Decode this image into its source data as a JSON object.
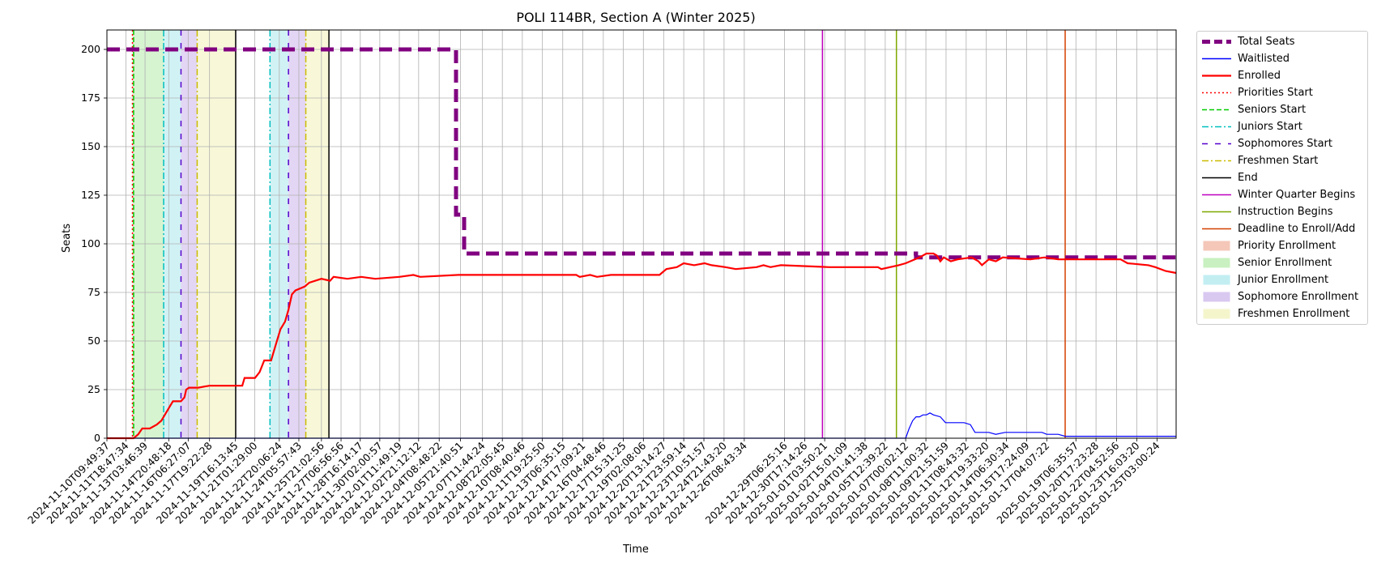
{
  "chart_data": {
    "type": "line",
    "title": "POLI 114BR, Section A (Winter 2025)",
    "xlabel": "Time",
    "ylabel": "Seats",
    "ylim": [
      0,
      210
    ],
    "yticks": [
      0,
      25,
      50,
      75,
      100,
      125,
      150,
      175,
      200
    ],
    "x_range": [
      "2024-11-10T09:49:37",
      "2025-01-26T12:00:00"
    ],
    "xticks": [
      "2024-11-10T09:49:37",
      "2024-11-11T18:47:34",
      "2024-11-13T03:46:39",
      "2024-11-14T20:48:18",
      "2024-11-16T06:27:07",
      "2024-11-17T19:22:28",
      "2024-11-19T16:13:45",
      "2024-11-21T01:29:00",
      "2024-11-22T20:06:24",
      "2024-11-24T05:57:43",
      "2024-11-25T21:02:56",
      "2024-11-27T06:56:56",
      "2024-11-28T16:14:17",
      "2024-11-30T02:00:57",
      "2024-12-01T11:49:19",
      "2024-12-02T21:12:12",
      "2024-12-04T08:48:22",
      "2024-12-05T21:40:51",
      "2024-12-07T11:44:24",
      "2024-12-08T22:05:45",
      "2024-12-10T08:40:46",
      "2024-12-11T19:25:50",
      "2024-12-13T06:35:15",
      "2024-12-14T17:09:21",
      "2024-12-16T04:48:46",
      "2024-12-17T15:31:25",
      "2024-12-19T02:08:06",
      "2024-12-20T13:14:27",
      "2024-12-21T23:59:14",
      "2024-12-23T10:51:57",
      "2024-12-24T21:43:20",
      "2024-12-26T08:43:34",
      "2024-12-29T06:25:16",
      "2024-12-30T17:14:26",
      "2025-01-01T03:50:21",
      "2025-01-02T15:01:09",
      "2025-01-04T01:41:38",
      "2025-01-05T12:39:22",
      "2025-01-07T00:02:12",
      "2025-01-08T11:00:32",
      "2025-01-09T21:51:59",
      "2025-01-11T08:43:32",
      "2025-01-12T19:33:20",
      "2025-01-14T06:30:34",
      "2025-01-15T17:24:09",
      "2025-01-17T04:07:22",
      "2025-01-19T06:35:57",
      "2025-01-20T17:23:28",
      "2025-01-22T04:52:56",
      "2025-01-23T16:03:20",
      "2025-01-25T03:00:24"
    ],
    "grid": true,
    "legend_position": "outside-right",
    "series": [
      {
        "name": "Total Seats",
        "color": "#800080",
        "style": "dashed-thick",
        "points": [
          [
            "2024-11-10T09:49:37",
            200
          ],
          [
            "2024-12-05T14:00:00",
            200
          ],
          [
            "2024-12-05T14:00:00",
            115
          ],
          [
            "2024-12-06T04:00:00",
            115
          ],
          [
            "2024-12-06T04:00:00",
            95
          ],
          [
            "2025-01-07T18:00:00",
            95
          ],
          [
            "2025-01-07T18:00:00",
            93
          ],
          [
            "2025-01-26T12:00:00",
            93
          ]
        ]
      },
      {
        "name": "Waitlisted",
        "color": "#0000ff",
        "style": "solid",
        "points": [
          [
            "2024-11-10T09:49:37",
            0
          ],
          [
            "2025-01-07T00:02:12",
            0
          ],
          [
            "2025-01-07T06:00:00",
            5
          ],
          [
            "2025-01-07T12:00:00",
            9
          ],
          [
            "2025-01-07T18:00:00",
            11
          ],
          [
            "2025-01-08T00:00:00",
            11
          ],
          [
            "2025-01-08T06:00:00",
            12
          ],
          [
            "2025-01-08T12:00:00",
            12
          ],
          [
            "2025-01-08T18:00:00",
            13
          ],
          [
            "2025-01-09T00:00:00",
            12
          ],
          [
            "2025-01-09T12:00:00",
            11
          ],
          [
            "2025-01-09T21:00:00",
            8
          ],
          [
            "2025-01-11T05:00:00",
            8
          ],
          [
            "2025-01-11T16:00:00",
            7
          ],
          [
            "2025-01-12T00:00:00",
            3
          ],
          [
            "2025-01-13T00:00:00",
            3
          ],
          [
            "2025-01-13T12:00:00",
            2
          ],
          [
            "2025-01-14T04:00:00",
            3
          ],
          [
            "2025-01-16T20:00:00",
            3
          ],
          [
            "2025-01-17T04:00:00",
            2
          ],
          [
            "2025-01-18T00:00:00",
            2
          ],
          [
            "2025-01-18T12:00:00",
            1
          ],
          [
            "2025-01-26T12:00:00",
            1
          ]
        ]
      },
      {
        "name": "Enrolled",
        "color": "#ff0000",
        "style": "solid-thick",
        "points": [
          [
            "2024-11-10T09:49:37",
            0
          ],
          [
            "2024-11-12T08:00:00",
            0
          ],
          [
            "2024-11-12T16:00:00",
            2
          ],
          [
            "2024-11-12T23:00:00",
            5
          ],
          [
            "2024-11-13T12:00:00",
            5
          ],
          [
            "2024-11-14T00:00:00",
            7
          ],
          [
            "2024-11-14T08:00:00",
            9
          ],
          [
            "2024-11-14T18:00:00",
            14
          ],
          [
            "2024-11-15T00:00:00",
            17
          ],
          [
            "2024-11-15T04:00:00",
            19
          ],
          [
            "2024-11-15T18:00:00",
            19
          ],
          [
            "2024-11-16T00:00:00",
            21
          ],
          [
            "2024-11-16T03:00:00",
            25
          ],
          [
            "2024-11-16T08:00:00",
            26
          ],
          [
            "2024-11-17T00:00:00",
            26
          ],
          [
            "2024-11-17T19:00:00",
            27
          ],
          [
            "2024-11-20T04:00:00",
            27
          ],
          [
            "2024-11-20T08:00:00",
            31
          ],
          [
            "2024-11-21T02:00:00",
            31
          ],
          [
            "2024-11-21T10:00:00",
            34
          ],
          [
            "2024-11-21T18:00:00",
            40
          ],
          [
            "2024-11-22T06:00:00",
            40
          ],
          [
            "2024-11-22T14:00:00",
            48
          ],
          [
            "2024-11-22T22:00:00",
            56
          ],
          [
            "2024-11-23T06:00:00",
            60
          ],
          [
            "2024-11-23T12:00:00",
            66
          ],
          [
            "2024-11-23T18:00:00",
            74
          ],
          [
            "2024-11-24T00:00:00",
            76
          ],
          [
            "2024-11-24T16:00:00",
            78
          ],
          [
            "2024-11-25T00:00:00",
            80
          ],
          [
            "2024-11-25T21:00:00",
            82
          ],
          [
            "2024-11-26T12:00:00",
            81
          ],
          [
            "2024-11-26T18:00:00",
            83
          ],
          [
            "2024-11-27T18:00:00",
            82
          ],
          [
            "2024-11-28T18:00:00",
            83
          ],
          [
            "2024-11-29T18:00:00",
            82
          ],
          [
            "2024-12-01T12:00:00",
            83
          ],
          [
            "2024-12-02T12:00:00",
            84
          ],
          [
            "2024-12-03T00:00:00",
            83
          ],
          [
            "2024-12-05T18:00:00",
            84
          ],
          [
            "2024-12-14T06:00:00",
            84
          ],
          [
            "2024-12-14T12:00:00",
            83
          ],
          [
            "2024-12-15T06:00:00",
            84
          ],
          [
            "2024-12-15T18:00:00",
            83
          ],
          [
            "2024-12-16T18:00:00",
            84
          ],
          [
            "2024-12-20T06:00:00",
            84
          ],
          [
            "2024-12-20T18:00:00",
            87
          ],
          [
            "2024-12-21T12:00:00",
            88
          ],
          [
            "2024-12-22T00:00:00",
            90
          ],
          [
            "2024-12-22T18:00:00",
            89
          ],
          [
            "2024-12-23T12:00:00",
            90
          ],
          [
            "2024-12-24T00:00:00",
            89
          ],
          [
            "2024-12-25T00:00:00",
            88
          ],
          [
            "2024-12-25T18:00:00",
            87
          ],
          [
            "2024-12-27T06:00:00",
            88
          ],
          [
            "2024-12-27T18:00:00",
            89
          ],
          [
            "2024-12-28T06:00:00",
            88
          ],
          [
            "2024-12-29T00:00:00",
            89
          ],
          [
            "2025-01-01T12:00:00",
            88
          ],
          [
            "2025-01-05T00:00:00",
            88
          ],
          [
            "2025-01-05T06:00:00",
            87
          ],
          [
            "2025-01-06T12:00:00",
            89
          ],
          [
            "2025-01-07T00:00:00",
            90
          ],
          [
            "2025-01-08T00:00:00",
            93
          ],
          [
            "2025-01-08T12:00:00",
            95
          ],
          [
            "2025-01-09T00:00:00",
            95
          ],
          [
            "2025-01-09T06:00:00",
            94
          ],
          [
            "2025-01-09T12:00:00",
            91
          ],
          [
            "2025-01-09T18:00:00",
            93
          ],
          [
            "2025-01-10T06:00:00",
            91
          ],
          [
            "2025-01-10T18:00:00",
            92
          ],
          [
            "2025-01-11T18:00:00",
            93
          ],
          [
            "2025-01-12T06:00:00",
            91
          ],
          [
            "2025-01-12T12:00:00",
            89
          ],
          [
            "2025-01-13T00:00:00",
            92
          ],
          [
            "2025-01-13T12:00:00",
            91
          ],
          [
            "2025-01-14T00:00:00",
            93
          ],
          [
            "2025-01-16T00:00:00",
            92
          ],
          [
            "2025-01-17T00:00:00",
            93
          ],
          [
            "2025-01-18T00:00:00",
            92
          ],
          [
            "2025-01-22T12:00:00",
            92
          ],
          [
            "2025-01-23T00:00:00",
            90
          ],
          [
            "2025-01-24T12:00:00",
            89
          ],
          [
            "2025-01-25T00:00:00",
            88
          ],
          [
            "2025-01-25T18:00:00",
            86
          ],
          [
            "2025-01-26T12:00:00",
            85
          ]
        ]
      }
    ],
    "vlines": [
      {
        "name": "Priorities Start",
        "color": "#ff0000",
        "style": "dotted",
        "x": [
          "2024-11-12T06:00:00"
        ]
      },
      {
        "name": "Seniors Start",
        "color": "#00cc00",
        "style": "dashed",
        "x": [
          "2024-11-12T08:00:00"
        ]
      },
      {
        "name": "Juniors Start",
        "color": "#00bfbf",
        "style": "dashdot",
        "x": [
          "2024-11-14T12:00:00",
          "2024-11-22T04:00:00"
        ]
      },
      {
        "name": "Sophomores Start",
        "color": "#5500cc",
        "style": "loosedash",
        "x": [
          "2024-11-15T18:00:00",
          "2024-11-23T12:00:00"
        ]
      },
      {
        "name": "Freshmen Start",
        "color": "#ccbb00",
        "style": "dashdot",
        "x": [
          "2024-11-16T22:00:00",
          "2024-11-24T18:00:00"
        ]
      },
      {
        "name": "End",
        "color": "#000000",
        "style": "solid",
        "x": [
          "2024-11-19T16:40:00",
          "2024-11-26T10:00:00"
        ]
      },
      {
        "name": "Winter Quarter Begins",
        "color": "#bf00bf",
        "style": "solid",
        "x": [
          "2025-01-01T00:00:00"
        ]
      },
      {
        "name": "Instruction Begins",
        "color": "#7fa800",
        "style": "solid",
        "x": [
          "2025-01-06T08:00:00"
        ]
      },
      {
        "name": "Deadline to Enroll/Add",
        "color": "#d44000",
        "style": "solid",
        "x": [
          "2025-01-18T12:00:00"
        ]
      }
    ],
    "spans": [
      {
        "name": "Priority Enrollment",
        "color": "#f4c7b8",
        "ranges": [
          [
            "2024-11-12T06:00:00",
            "2024-11-12T08:00:00"
          ]
        ]
      },
      {
        "name": "Senior Enrollment",
        "color": "#c8f0c0",
        "ranges": [
          [
            "2024-11-12T08:00:00",
            "2024-11-14T12:00:00"
          ]
        ]
      },
      {
        "name": "Junior Enrollment",
        "color": "#c2eef2",
        "ranges": [
          [
            "2024-11-14T12:00:00",
            "2024-11-15T18:00:00"
          ],
          [
            "2024-11-22T04:00:00",
            "2024-11-23T12:00:00"
          ]
        ]
      },
      {
        "name": "Sophomore Enrollment",
        "color": "#d9c8f0",
        "ranges": [
          [
            "2024-11-15T18:00:00",
            "2024-11-16T22:00:00"
          ],
          [
            "2024-11-23T12:00:00",
            "2024-11-24T18:00:00"
          ]
        ]
      },
      {
        "name": "Freshmen Enrollment",
        "color": "#f5f5cc",
        "ranges": [
          [
            "2024-11-16T22:00:00",
            "2024-11-19T16:40:00"
          ],
          [
            "2024-11-24T18:00:00",
            "2024-11-26T10:00:00"
          ]
        ]
      }
    ]
  },
  "legend": {
    "items": [
      {
        "label": "Total Seats",
        "kind": "line",
        "color": "#800080",
        "style": "dashed-thick"
      },
      {
        "label": "Waitlisted",
        "kind": "line",
        "color": "#0000ff",
        "style": "solid"
      },
      {
        "label": "Enrolled",
        "kind": "line",
        "color": "#ff0000",
        "style": "solid-thick"
      },
      {
        "label": "Priorities Start",
        "kind": "line",
        "color": "#ff0000",
        "style": "dotted"
      },
      {
        "label": "Seniors Start",
        "kind": "line",
        "color": "#00cc00",
        "style": "dashed"
      },
      {
        "label": "Juniors Start",
        "kind": "line",
        "color": "#00bfbf",
        "style": "dashdot"
      },
      {
        "label": "Sophomores Start",
        "kind": "line",
        "color": "#5500cc",
        "style": "loosedash"
      },
      {
        "label": "Freshmen Start",
        "kind": "line",
        "color": "#ccbb00",
        "style": "dashdot"
      },
      {
        "label": "End",
        "kind": "line",
        "color": "#000000",
        "style": "solid"
      },
      {
        "label": "Winter Quarter Begins",
        "kind": "line",
        "color": "#bf00bf",
        "style": "solid"
      },
      {
        "label": "Instruction Begins",
        "kind": "line",
        "color": "#7fa800",
        "style": "solid"
      },
      {
        "label": "Deadline to Enroll/Add",
        "kind": "line",
        "color": "#d44000",
        "style": "solid"
      },
      {
        "label": "Priority Enrollment",
        "kind": "patch",
        "color": "#f4c7b8"
      },
      {
        "label": "Senior Enrollment",
        "kind": "patch",
        "color": "#c8f0c0"
      },
      {
        "label": "Junior Enrollment",
        "kind": "patch",
        "color": "#c2eef2"
      },
      {
        "label": "Sophomore Enrollment",
        "kind": "patch",
        "color": "#d9c8f0"
      },
      {
        "label": "Freshmen Enrollment",
        "kind": "patch",
        "color": "#f5f5cc"
      }
    ]
  }
}
